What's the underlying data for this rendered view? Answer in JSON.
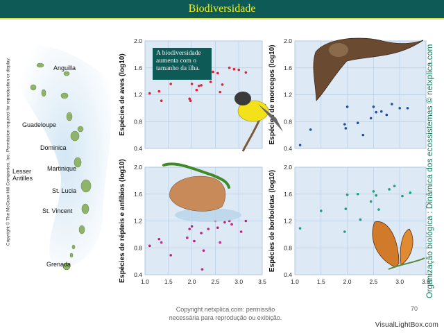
{
  "header": {
    "title": "Biodiversidade"
  },
  "sidebar": {
    "copyright_vertical": "Copyright © The McGraw-Hill Companies, Inc. Permission required for reproduction or display.",
    "islands": {
      "anguilla": "Anguilla",
      "guadeloupe": "Guadeloupe",
      "dominica": "Dominica",
      "martinique": "Martinique",
      "lesser_antilles_1": "Lesser",
      "lesser_antilles_2": "Antilles",
      "st_lucia": "St. Lucia",
      "st_vincent": "St. Vincent",
      "grenada": "Grenada"
    }
  },
  "note": {
    "text": "A biodiversidade aumenta com o tamanho da ilha."
  },
  "right_credit": "Organização biológica : Dinâmica dos ecossistemas © netxplica.com",
  "footer": {
    "line1": "Copyright netxplica.com: permissão",
    "line2": "necessária para reprodução ou exibição.",
    "page": "70"
  },
  "watermark": "VisualLightBox.com",
  "colors": {
    "header_bg": "#0d5a57",
    "header_text": "#f2f21c",
    "plot_bg": "#dde9f5",
    "grid": "#b8cde3",
    "aves": "#e0203a",
    "morcegos": "#1f4fa0",
    "repteis": "#c0217c",
    "borboletas": "#17a07a"
  },
  "chart_data": [
    {
      "type": "scatter",
      "ylabel": "Espécies de aves (log10)",
      "xlim": [
        1.0,
        3.5
      ],
      "ylim": [
        0.4,
        2.0
      ],
      "xticks": [
        "1.0",
        "1.5",
        "2.0",
        "2.5",
        "3.0",
        "3.5"
      ],
      "yticks": [
        "0.4",
        "0.8",
        "1.2",
        "1.6",
        "2.0"
      ],
      "x": [
        1.1,
        1.3,
        1.35,
        1.55,
        1.95,
        1.97,
        2.0,
        2.1,
        2.15,
        2.2,
        2.3,
        2.4,
        2.45,
        2.55,
        2.6,
        2.65,
        2.8,
        2.9,
        3.0,
        3.15
      ],
      "y": [
        1.22,
        1.25,
        1.11,
        1.36,
        1.14,
        1.11,
        1.36,
        1.27,
        1.33,
        1.34,
        1.57,
        1.39,
        1.54,
        1.52,
        1.24,
        1.35,
        1.6,
        1.58,
        1.57,
        1.53
      ]
    },
    {
      "type": "scatter",
      "ylabel": "Espécies de morcegos (log10)",
      "xlim": [
        1.0,
        3.5
      ],
      "ylim": [
        0.4,
        2.0
      ],
      "xticks": [
        "1.0",
        "1.5",
        "2.0",
        "2.5",
        "3.0",
        "3.5"
      ],
      "yticks": [
        "0.4",
        "0.8",
        "1.2",
        "1.6",
        "2.0"
      ],
      "x": [
        1.1,
        1.3,
        1.95,
        1.97,
        2.0,
        2.2,
        2.3,
        2.45,
        2.5,
        2.55,
        2.65,
        2.75,
        2.85,
        3.0,
        3.15
      ],
      "y": [
        0.45,
        0.68,
        0.76,
        0.7,
        1.02,
        0.78,
        0.6,
        0.85,
        1.02,
        0.94,
        0.95,
        0.9,
        1.06,
        1.0,
        1.0
      ]
    },
    {
      "type": "scatter",
      "ylabel": "Espécies de répteis e anfíbios (log10)",
      "xlim": [
        1.0,
        3.5
      ],
      "ylim": [
        0.4,
        2.0
      ],
      "xticks": [
        "1.0",
        "1.5",
        "2.0",
        "2.5",
        "3.0",
        "3.5"
      ],
      "yticks": [
        "0.4",
        "0.8",
        "1.2",
        "1.6",
        "2.0"
      ],
      "x": [
        1.1,
        1.3,
        1.35,
        1.55,
        1.9,
        1.95,
        2.0,
        2.05,
        2.2,
        2.22,
        2.25,
        2.35,
        2.5,
        2.55,
        2.6,
        2.7,
        2.8,
        2.85,
        3.05,
        3.15
      ],
      "y": [
        0.83,
        0.93,
        0.88,
        0.69,
        0.95,
        1.08,
        1.12,
        0.9,
        1.02,
        0.48,
        0.76,
        1.08,
        1.2,
        1.1,
        0.88,
        1.18,
        1.2,
        1.15,
        1.04,
        1.2
      ]
    },
    {
      "type": "scatter",
      "ylabel": "Espécies de borboletas (log10)",
      "xlim": [
        1.0,
        3.5
      ],
      "ylim": [
        0.4,
        2.0
      ],
      "xticks": [
        "1.0",
        "1.5",
        "2.0",
        "2.5",
        "3.0",
        "3.5"
      ],
      "yticks": [
        "0.4",
        "0.8",
        "1.2",
        "1.6",
        "2.0"
      ],
      "x": [
        1.1,
        1.5,
        1.95,
        1.97,
        2.0,
        2.2,
        2.25,
        2.45,
        2.5,
        2.55,
        2.6,
        2.8,
        2.9,
        3.05,
        3.2
      ],
      "y": [
        1.09,
        1.35,
        1.04,
        1.38,
        1.59,
        1.6,
        1.22,
        1.49,
        1.64,
        1.58,
        1.37,
        1.67,
        1.72,
        1.57,
        1.62
      ]
    }
  ]
}
